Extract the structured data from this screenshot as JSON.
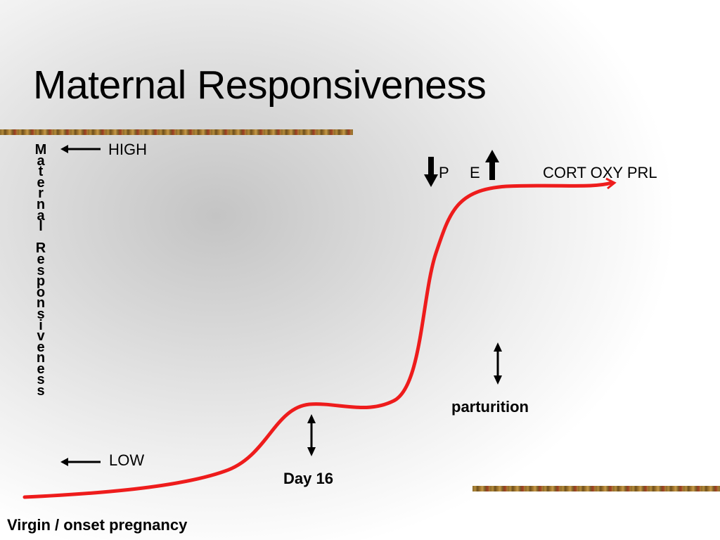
{
  "title": "Maternal Responsiveness",
  "y_axis_label": "Maternal Responsiveness",
  "labels": {
    "high": "HIGH",
    "low": "LOW",
    "hormones_p": "P",
    "hormones_e": "E",
    "hormones_other": "CORT OXY PRL",
    "parturition": "parturition",
    "day16": "Day 16",
    "x_origin": "Virgin / onset pregnancy"
  },
  "colors": {
    "curve": "#ee1c1c",
    "arrows": "#000000"
  }
}
